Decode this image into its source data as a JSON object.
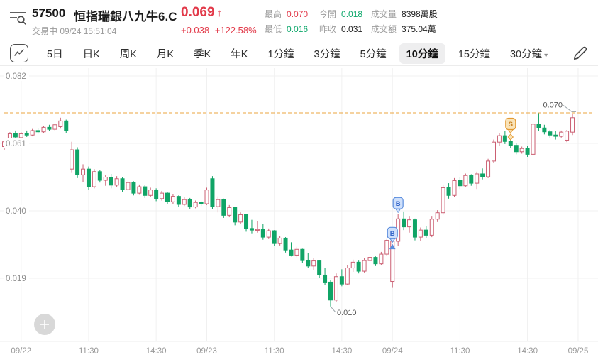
{
  "header": {
    "symbol": "57500",
    "name": "恒指瑞銀八九牛6.C",
    "price": "0.069",
    "arrow": "↑",
    "change": "+0.038",
    "change_pct": "+122.58%",
    "status_line": "交易中 09/24 15:51:04",
    "left_icon": "list-search-icon"
  },
  "stats": {
    "items": [
      {
        "label": "最高",
        "value": "0.070",
        "tone": "red"
      },
      {
        "label": "最低",
        "value": "0.016",
        "tone": "green"
      },
      {
        "label": "今開",
        "value": "0.018",
        "tone": "green"
      },
      {
        "label": "昨收",
        "value": "0.031",
        "tone": "dark"
      },
      {
        "label": "成交量",
        "value": "8398萬股",
        "tone": "dark"
      },
      {
        "label": "成交額",
        "value": "375.04萬",
        "tone": "dark"
      }
    ]
  },
  "toolbar": {
    "chart_type_icon": "line-chart-icon",
    "edit_icon": "pencil-icon",
    "tabs": [
      {
        "label": "5日"
      },
      {
        "label": "日K"
      },
      {
        "label": "周K"
      },
      {
        "label": "月K"
      },
      {
        "label": "季K"
      },
      {
        "label": "年K"
      },
      {
        "label": "1分鐘"
      },
      {
        "label": "3分鐘"
      },
      {
        "label": "5分鐘"
      },
      {
        "label": "10分鐘",
        "selected": true
      },
      {
        "label": "15分鐘"
      },
      {
        "label": "30分鐘",
        "caret": true
      }
    ]
  },
  "fab": {
    "icon": "plus-icon"
  },
  "chart_data": {
    "type": "candlestick",
    "interval": "10分鐘",
    "grid": true,
    "colors": {
      "up_stroke": "#cb5f72",
      "down_fill": "#10a466",
      "price_line": "#eba43f",
      "grid": "#f0f0f0",
      "axis_text": "#9a9a9a",
      "buy_badge_fill": "#cfe0fb",
      "buy_badge_stroke": "#5b8ddd",
      "buy_badge_text": "#3567c9",
      "sell_badge_fill": "#f9e3b8",
      "sell_badge_stroke": "#e39a33",
      "sell_badge_text": "#c87f1f"
    },
    "y_axis": {
      "ticks": [
        0.082,
        0.061,
        0.04,
        0.019
      ],
      "min": 0.008,
      "max": 0.084
    },
    "x_axis": {
      "ticks": [
        {
          "label": "09/22",
          "candle": 3
        },
        {
          "label": "11:30",
          "candle": 15
        },
        {
          "label": "14:30",
          "candle": 27
        },
        {
          "label": "09/23",
          "candle": 36
        },
        {
          "label": "11:30",
          "candle": 48
        },
        {
          "label": "14:30",
          "candle": 60
        },
        {
          "label": "09/24",
          "candle": 69
        },
        {
          "label": "11:30",
          "candle": 81
        },
        {
          "label": "14:30",
          "candle": 93
        },
        {
          "label": "09/25",
          "candle": 102
        }
      ]
    },
    "price_line": 0.0705,
    "annotations": [
      {
        "text": "0.010",
        "candle": 58,
        "price": 0.0102,
        "placement": "below-right"
      },
      {
        "text": "0.070",
        "candle": 101,
        "price": 0.0702,
        "placement": "above-left"
      }
    ],
    "markers": [
      {
        "type": "buy",
        "label": "B",
        "candle": 70,
        "price": 0.0395,
        "size": "large"
      },
      {
        "type": "buy",
        "label": "B",
        "candle": 69,
        "price": 0.0302,
        "size": "large"
      },
      {
        "type": "buy",
        "label": "B",
        "candle": 69,
        "price": 0.0288,
        "size": "small"
      },
      {
        "type": "sell",
        "label": "S",
        "candle": 90,
        "price": 0.0642,
        "size": "large"
      },
      {
        "type": "sell",
        "label": "S",
        "candle": 90,
        "price": 0.063,
        "size": "small"
      }
    ],
    "candles": [
      [
        0.06,
        0.062,
        0.059,
        0.0615
      ],
      [
        0.0615,
        0.0645,
        0.061,
        0.064
      ],
      [
        0.064,
        0.065,
        0.0625,
        0.063
      ],
      [
        0.0628,
        0.0645,
        0.0618,
        0.064
      ],
      [
        0.064,
        0.065,
        0.063,
        0.0636
      ],
      [
        0.0636,
        0.0655,
        0.0632,
        0.065
      ],
      [
        0.065,
        0.0658,
        0.064,
        0.0646
      ],
      [
        0.0646,
        0.0665,
        0.0642,
        0.066
      ],
      [
        0.066,
        0.0668,
        0.0648,
        0.0654
      ],
      [
        0.0654,
        0.0672,
        0.065,
        0.0668
      ],
      [
        0.0662,
        0.069,
        0.0656,
        0.068
      ],
      [
        0.068,
        0.0684,
        0.0642,
        0.065
      ],
      [
        0.053,
        0.0615,
        0.0518,
        0.059
      ],
      [
        0.059,
        0.0598,
        0.0502,
        0.0512
      ],
      [
        0.0512,
        0.0545,
        0.049,
        0.053
      ],
      [
        0.053,
        0.0538,
        0.0466,
        0.0475
      ],
      [
        0.0475,
        0.053,
        0.047,
        0.0522
      ],
      [
        0.0522,
        0.0528,
        0.0488,
        0.0495
      ],
      [
        0.0495,
        0.0512,
        0.0478,
        0.0505
      ],
      [
        0.0505,
        0.0515,
        0.047,
        0.048
      ],
      [
        0.048,
        0.0508,
        0.0475,
        0.05
      ],
      [
        0.05,
        0.0505,
        0.0458,
        0.0466
      ],
      [
        0.0466,
        0.0495,
        0.046,
        0.0488
      ],
      [
        0.0488,
        0.0492,
        0.0448,
        0.0455
      ],
      [
        0.0455,
        0.0482,
        0.045,
        0.0475
      ],
      [
        0.0475,
        0.048,
        0.044,
        0.0448
      ],
      [
        0.0448,
        0.0472,
        0.0442,
        0.0465
      ],
      [
        0.0465,
        0.047,
        0.043,
        0.0438
      ],
      [
        0.0438,
        0.0462,
        0.0432,
        0.0455
      ],
      [
        0.0455,
        0.0458,
        0.042,
        0.0428
      ],
      [
        0.0428,
        0.0452,
        0.0422,
        0.0445
      ],
      [
        0.0445,
        0.0448,
        0.0412,
        0.042
      ],
      [
        0.042,
        0.0442,
        0.0415,
        0.0435
      ],
      [
        0.0435,
        0.044,
        0.0405,
        0.0412
      ],
      [
        0.0412,
        0.0432,
        0.0408,
        0.0426
      ],
      [
        0.0426,
        0.043,
        0.0415,
        0.0422
      ],
      [
        0.0422,
        0.0472,
        0.0418,
        0.0465
      ],
      [
        0.05,
        0.0508,
        0.0405,
        0.0413
      ],
      [
        0.0413,
        0.0445,
        0.0395,
        0.0435
      ],
      [
        0.0435,
        0.0438,
        0.0378,
        0.0386
      ],
      [
        0.0386,
        0.0418,
        0.038,
        0.041
      ],
      [
        0.041,
        0.0412,
        0.0355,
        0.0365
      ],
      [
        0.0365,
        0.0395,
        0.0358,
        0.0388
      ],
      [
        0.0388,
        0.039,
        0.0335,
        0.0345
      ],
      [
        0.0345,
        0.0372,
        0.033,
        0.034
      ],
      [
        0.034,
        0.0368,
        0.0332,
        0.0342
      ],
      [
        0.0342,
        0.036,
        0.031,
        0.0318
      ],
      [
        0.0318,
        0.0345,
        0.0312,
        0.0338
      ],
      [
        0.0338,
        0.034,
        0.029,
        0.0298
      ],
      [
        0.0298,
        0.0322,
        0.0292,
        0.0315
      ],
      [
        0.0315,
        0.0318,
        0.027,
        0.0278
      ],
      [
        0.0278,
        0.0302,
        0.0258,
        0.0262
      ],
      [
        0.0262,
        0.0288,
        0.0255,
        0.028
      ],
      [
        0.028,
        0.0282,
        0.0238,
        0.0245
      ],
      [
        0.0245,
        0.0268,
        0.0222,
        0.0228
      ],
      [
        0.0228,
        0.0252,
        0.0215,
        0.0244
      ],
      [
        0.0244,
        0.0246,
        0.0192,
        0.02
      ],
      [
        0.02,
        0.0222,
        0.017,
        0.0178
      ],
      [
        0.0178,
        0.0185,
        0.0102,
        0.0122
      ],
      [
        0.0122,
        0.0205,
        0.0115,
        0.0195
      ],
      [
        0.0195,
        0.0218,
        0.0165,
        0.0172
      ],
      [
        0.0172,
        0.023,
        0.0168,
        0.0222
      ],
      [
        0.0222,
        0.0248,
        0.021,
        0.024
      ],
      [
        0.024,
        0.0245,
        0.0205,
        0.0212
      ],
      [
        0.0212,
        0.0252,
        0.0208,
        0.0245
      ],
      [
        0.0245,
        0.0262,
        0.0235,
        0.0255
      ],
      [
        0.0255,
        0.0258,
        0.0228,
        0.0235
      ],
      [
        0.0235,
        0.0272,
        0.023,
        0.0265
      ],
      [
        0.0265,
        0.0312,
        0.026,
        0.0308
      ],
      [
        0.018,
        0.032,
        0.016,
        0.0305
      ],
      [
        0.0305,
        0.039,
        0.029,
        0.0375
      ],
      [
        0.0375,
        0.0398,
        0.034,
        0.035
      ],
      [
        0.035,
        0.0382,
        0.0332,
        0.0372
      ],
      [
        0.0372,
        0.0376,
        0.0308,
        0.0318
      ],
      [
        0.0318,
        0.0348,
        0.0305,
        0.034
      ],
      [
        0.034,
        0.0352,
        0.0315,
        0.0324
      ],
      [
        0.0324,
        0.0382,
        0.0318,
        0.0374
      ],
      [
        0.0374,
        0.0402,
        0.0365,
        0.0394
      ],
      [
        0.0394,
        0.0482,
        0.0388,
        0.0472
      ],
      [
        0.0472,
        0.0486,
        0.0438,
        0.0448
      ],
      [
        0.0448,
        0.0502,
        0.0444,
        0.0494
      ],
      [
        0.0494,
        0.0506,
        0.0468,
        0.0478
      ],
      [
        0.0478,
        0.0516,
        0.0474,
        0.051
      ],
      [
        0.051,
        0.0514,
        0.0478,
        0.0486
      ],
      [
        0.0486,
        0.0522,
        0.0468,
        0.0515
      ],
      [
        0.0515,
        0.0532,
        0.0498,
        0.0506
      ],
      [
        0.0506,
        0.0562,
        0.0502,
        0.0555
      ],
      [
        0.0555,
        0.0622,
        0.055,
        0.0614
      ],
      [
        0.0614,
        0.0642,
        0.0602,
        0.0634
      ],
      [
        0.0634,
        0.0648,
        0.0608,
        0.0616
      ],
      [
        0.0616,
        0.0626,
        0.0596,
        0.0604
      ],
      [
        0.0604,
        0.0612,
        0.0576,
        0.0584
      ],
      [
        0.0584,
        0.06,
        0.0578,
        0.0594
      ],
      [
        0.0594,
        0.0602,
        0.0568,
        0.0576
      ],
      [
        0.0576,
        0.068,
        0.057,
        0.067
      ],
      [
        0.067,
        0.0706,
        0.0648,
        0.0658
      ],
      [
        0.0658,
        0.0668,
        0.0638,
        0.0646
      ],
      [
        0.0646,
        0.0652,
        0.0628,
        0.0636
      ],
      [
        0.0636,
        0.0648,
        0.0622,
        0.0632
      ],
      [
        0.0632,
        0.065,
        0.0628,
        0.0645
      ],
      [
        0.062,
        0.0652,
        0.0614,
        0.0648
      ],
      [
        0.0645,
        0.0702,
        0.0636,
        0.069
      ]
    ]
  }
}
